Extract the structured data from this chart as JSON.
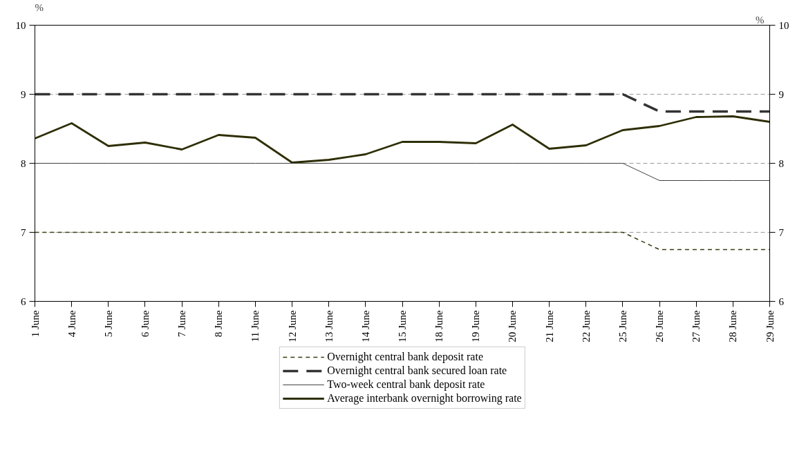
{
  "chart_data": {
    "type": "line",
    "categories": [
      "1 June",
      "4 June",
      "5 June",
      "6 June",
      "7 June",
      "8 June",
      "11 June",
      "12 June",
      "13 June",
      "14 June",
      "15 June",
      "18 June",
      "19 June",
      "20 June",
      "21 June",
      "22 June",
      "25 June",
      "26 June",
      "27 June",
      "28 June",
      "29 June"
    ],
    "ylabel": "%",
    "y2label": "%",
    "ylim": [
      6,
      10
    ],
    "yticks": [
      6,
      7,
      8,
      9,
      10
    ],
    "y2lim": [
      6,
      10
    ],
    "y2ticks": [
      6,
      7,
      8,
      9,
      10
    ],
    "grid": "y",
    "legend": "bottom",
    "marker": "none",
    "series": [
      {
        "name": "Overnight central bank deposit rate",
        "color": "#3a3a10",
        "line_style": "dashed",
        "values": [
          7,
          7,
          7,
          7,
          7,
          7,
          7,
          7,
          7,
          7,
          7,
          7,
          7,
          7,
          7,
          7,
          7,
          6.75,
          6.75,
          6.75,
          6.75
        ]
      },
      {
        "name": "Overnight central bank secured loan rate",
        "color": "#333333",
        "line_style": "dashed",
        "values": [
          9,
          9,
          9,
          9,
          9,
          9,
          9,
          9,
          9,
          9,
          9,
          9,
          9,
          9,
          9,
          9,
          9,
          8.75,
          8.75,
          8.75,
          8.75
        ]
      },
      {
        "name": "Two-week central bank deposit rate",
        "color": "#404040",
        "line_style": "solid",
        "values": [
          8,
          8,
          8,
          8,
          8,
          8,
          8,
          8,
          8,
          8,
          8,
          8,
          8,
          8,
          8,
          8,
          8,
          7.75,
          7.75,
          7.75,
          7.75
        ]
      },
      {
        "name": "Average interbank overnight borrowing rate",
        "color": "#2e2e05",
        "line_style": "solid",
        "values": [
          8.36,
          8.58,
          8.25,
          8.3,
          8.2,
          8.41,
          8.37,
          8.01,
          8.05,
          8.13,
          8.31,
          8.31,
          8.29,
          8.56,
          8.21,
          8.26,
          8.48,
          8.54,
          8.67,
          8.68,
          8.6
        ]
      }
    ]
  }
}
